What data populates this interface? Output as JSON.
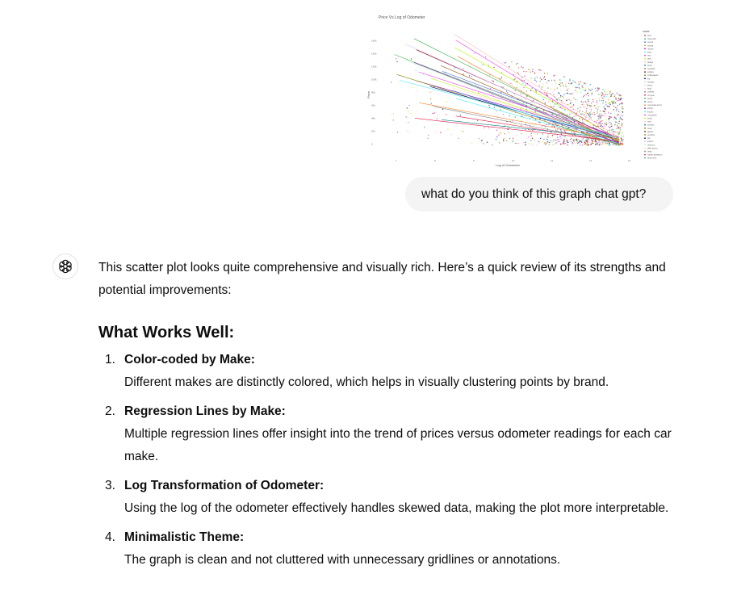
{
  "attachment": {
    "image_title": "Price Vs Log of Odometer",
    "x_label": "Log of Odometer",
    "y_label": "Price",
    "legend_title": "make",
    "x_ticks": [
      "7",
      "8",
      "9",
      "10",
      "11",
      "12",
      "13"
    ],
    "y_ticks": [
      "0",
      "20k",
      "40k",
      "60k",
      "80k",
      "100k",
      "120k",
      "140k",
      "160k"
    ],
    "legend_entries": [
      "ford",
      "chevrolet",
      "toyota",
      "honda",
      "nissan",
      "jeep",
      "ram",
      "gmc",
      "dodge",
      "bmw",
      "hyundai",
      "subaru",
      "volkswagen",
      "kia",
      "mazda",
      "lexus",
      "audi",
      "cadillac",
      "chrysler",
      "buick",
      "acura",
      "mercedes-benz",
      "infiniti",
      "lincoln",
      "mitsubishi",
      "volvo",
      "mini",
      "pontiac",
      "rover",
      "jaguar",
      "porsche",
      "fiat",
      "saturn",
      "mercury",
      "alfa-romeo",
      "tesla",
      "harley-davidson",
      "land rover"
    ],
    "chart_data": {
      "type": "scatter",
      "title": "Price Vs Log of Odometer",
      "xlabel": "Log of Odometer",
      "ylabel": "Price",
      "legend_position": "right"
    }
  },
  "user_message": "what do you think of this graph chat gpt?",
  "assistant": {
    "avatar_icon": "openai-logo-icon",
    "intro": "This scatter plot looks quite comprehensive and visually rich. Here’s a quick review of its strengths and potential improvements:",
    "section_heading": "What Works Well:",
    "items": [
      {
        "num": "1.",
        "title": "Color-coded by Make:",
        "desc": "Different makes are distinctly colored, which helps in visually clustering points by brand."
      },
      {
        "num": "2.",
        "title": "Regression Lines by Make:",
        "desc": "Multiple regression lines offer insight into the trend of prices versus odometer readings for each car make."
      },
      {
        "num": "3.",
        "title": "Log Transformation of Odometer:",
        "desc": "Using the log of the odometer effectively handles skewed data, making the plot more interpretable."
      },
      {
        "num": "4.",
        "title": "Minimalistic Theme:",
        "desc": "The graph is clean and not cluttered with unnecessary gridlines or annotations."
      }
    ]
  }
}
